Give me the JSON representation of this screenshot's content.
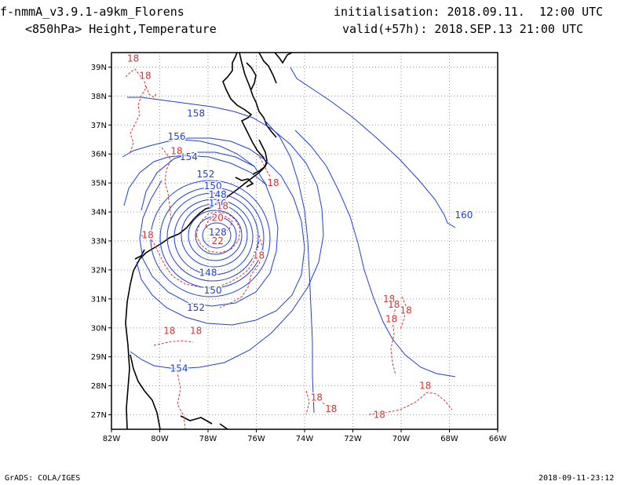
{
  "header": {
    "model_title": "f-nmmA_v3.9.1-a9km_Florens",
    "field_title": "<850hPa> Height,Temperature",
    "init_line": "initialisation: 2018.09.11.  12:00 UTC",
    "valid_line": "valid(+57h): 2018.SEP.13 21:00 UTC"
  },
  "footer": {
    "credit": "GrADS: COLA/IGES",
    "timestamp": "2018-09-11-23:12"
  },
  "colors": {
    "height_contour": "#1f3fd6",
    "temperature_contour": "#e03030",
    "coastline": "#000000",
    "grid": "#9a9a9a"
  },
  "map": {
    "lon_range": [
      -82,
      -66
    ],
    "lat_range": [
      26.5,
      39.5
    ],
    "lon_ticks": [
      {
        "value": -82,
        "label": "82W"
      },
      {
        "value": -80,
        "label": "80W"
      },
      {
        "value": -78,
        "label": "78W"
      },
      {
        "value": -76,
        "label": "76W"
      },
      {
        "value": -74,
        "label": "74W"
      },
      {
        "value": -72,
        "label": "72W"
      },
      {
        "value": -70,
        "label": "70W"
      },
      {
        "value": -68,
        "label": "68W"
      },
      {
        "value": -66,
        "label": "66W"
      }
    ],
    "lat_ticks": [
      {
        "value": 27,
        "label": "27N"
      },
      {
        "value": 28,
        "label": "28N"
      },
      {
        "value": 29,
        "label": "29N"
      },
      {
        "value": 30,
        "label": "30N"
      },
      {
        "value": 31,
        "label": "31N"
      },
      {
        "value": 32,
        "label": "32N"
      },
      {
        "value": 33,
        "label": "33N"
      },
      {
        "value": 34,
        "label": "34N"
      },
      {
        "value": 35,
        "label": "35N"
      },
      {
        "value": 36,
        "label": "36N"
      },
      {
        "value": 37,
        "label": "37N"
      },
      {
        "value": 38,
        "label": "38N"
      },
      {
        "value": 39,
        "label": "39N"
      }
    ],
    "grid": true,
    "cyclone_center": {
      "lon": -77.6,
      "lat": 33.4
    },
    "height_labels": [
      {
        "text": "158",
        "lon": -78.5,
        "lat": 37.4
      },
      {
        "text": "156",
        "lon": -79.3,
        "lat": 36.6
      },
      {
        "text": "154",
        "lon": -78.8,
        "lat": 35.9
      },
      {
        "text": "152",
        "lon": -78.1,
        "lat": 35.3
      },
      {
        "text": "150",
        "lon": -77.8,
        "lat": 34.9
      },
      {
        "text": "148",
        "lon": -77.6,
        "lat": 34.6
      },
      {
        "text": "146",
        "lon": -77.6,
        "lat": 34.3
      },
      {
        "text": "128",
        "lon": -77.6,
        "lat": 33.3
      },
      {
        "text": "148",
        "lon": -78.0,
        "lat": 31.9
      },
      {
        "text": "150",
        "lon": -77.8,
        "lat": 31.3
      },
      {
        "text": "152",
        "lon": -78.5,
        "lat": 30.7
      },
      {
        "text": "154",
        "lon": -79.2,
        "lat": 28.6
      },
      {
        "text": "160",
        "lon": -67.4,
        "lat": 33.9
      }
    ],
    "temperature_labels": [
      {
        "text": "18",
        "lon": -81.1,
        "lat": 39.3
      },
      {
        "text": "18",
        "lon": -80.6,
        "lat": 38.7
      },
      {
        "text": "18",
        "lon": -79.3,
        "lat": 36.1
      },
      {
        "text": "18",
        "lon": -75.3,
        "lat": 35.0
      },
      {
        "text": "18",
        "lon": -77.4,
        "lat": 34.2
      },
      {
        "text": "20",
        "lon": -77.6,
        "lat": 33.8
      },
      {
        "text": "22",
        "lon": -77.6,
        "lat": 33.0
      },
      {
        "text": "18",
        "lon": -80.5,
        "lat": 33.2
      },
      {
        "text": "18",
        "lon": -75.9,
        "lat": 32.5
      },
      {
        "text": "18",
        "lon": -79.6,
        "lat": 29.9
      },
      {
        "text": "18",
        "lon": -78.5,
        "lat": 29.9
      },
      {
        "text": "18",
        "lon": -70.5,
        "lat": 31.0
      },
      {
        "text": "18",
        "lon": -70.3,
        "lat": 30.8
      },
      {
        "text": "18",
        "lon": -69.8,
        "lat": 30.6
      },
      {
        "text": "18",
        "lon": -70.4,
        "lat": 30.3
      },
      {
        "text": "18",
        "lon": -73.5,
        "lat": 27.6
      },
      {
        "text": "18",
        "lon": -72.9,
        "lat": 27.2
      },
      {
        "text": "18",
        "lon": -69.0,
        "lat": 28.0
      },
      {
        "text": "18",
        "lon": -70.9,
        "lat": 27.0
      }
    ]
  }
}
